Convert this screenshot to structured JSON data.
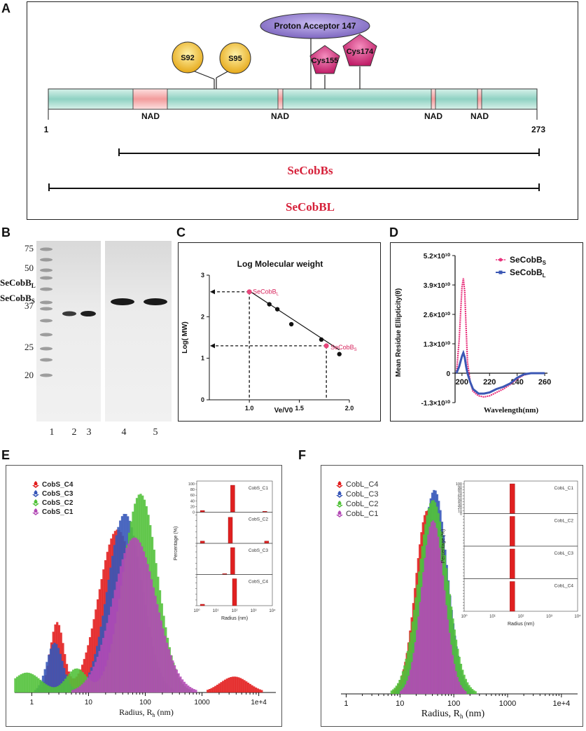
{
  "panels": {
    "a": "A",
    "b": "B",
    "c": "C",
    "d": "D",
    "e": "E",
    "f": "F"
  },
  "panel_a": {
    "residue_start": "1",
    "residue_end": "273",
    "nad_label": "NAD",
    "sites": [
      "S92",
      "S95"
    ],
    "proton_acceptor": "Proton Acceptor 147",
    "cysteines": [
      "Cys155",
      "Cys174"
    ],
    "short_construct": "SeCobBs",
    "long_construct": "SeCobBL",
    "colors": {
      "bar": "#9fd9cc",
      "nad": "#f2a4a4",
      "serine": "#f3c832",
      "cys": "#d2387a",
      "proton": "#8c7cc8",
      "construct_text": "#d6213a"
    }
  },
  "panel_b": {
    "ladder": [
      "75",
      "50",
      "37",
      "25",
      "20"
    ],
    "band_label_long": "SeCobB",
    "band_label_long_sub": "L",
    "band_label_short": "SeCobB",
    "band_label_short_sub": "S",
    "lanes": [
      "1",
      "2",
      "3",
      "4",
      "5"
    ]
  },
  "panel_c": {
    "title": "Log Molecular weight",
    "ylabel": "Log( MW)",
    "xlabel": "Ve/V0",
    "xticks": [
      "1.0",
      "1.5",
      "2.0"
    ],
    "yticks": [
      "0",
      "1",
      "2",
      "3"
    ],
    "label_long": "SeCobB",
    "label_long_sub": "L",
    "label_short": "SeCobB",
    "label_short_sub": "S"
  },
  "panel_d": {
    "ylabel": "Mean Residue Ellipticity(θ)",
    "xlabel": "Wavelength(nm)",
    "yticks": [
      "5.2×10¹⁰",
      "3.9×10¹⁰",
      "2.6×10¹⁰",
      "1.3×10¹⁰",
      "0",
      "-1.3×10¹⁰"
    ],
    "xticks": [
      "200",
      "220",
      "240",
      "260"
    ],
    "legend": [
      {
        "name": "SeCobB",
        "sub": "S",
        "color": "#e8327c"
      },
      {
        "name": "SeCobB",
        "sub": "L",
        "color": "#3b57b4"
      }
    ]
  },
  "panel_e": {
    "legend": [
      {
        "name": "CobS_C4",
        "color": "#e21d1d"
      },
      {
        "name": "CobS_C3",
        "color": "#3656b8"
      },
      {
        "name": "CobS_C2",
        "color": "#52c23a"
      },
      {
        "name": "CobS_C1",
        "color": "#b34ab5"
      }
    ],
    "xticks": [
      "1",
      "10",
      "100",
      "1000",
      "1e+4"
    ],
    "xlabel": "Radius, R",
    "xlabel_sub": "h",
    "xlabel_unit": " (nm)",
    "inset_ylabel": "Percentage (%)",
    "inset_xlabel": "Radius (nm)",
    "inset_rows": [
      "CobS_C1",
      "CobS_C2",
      "CobS_C3",
      "CobS_C4"
    ],
    "inset_yticks": [
      "0",
      "20",
      "40",
      "60",
      "80",
      "100"
    ],
    "inset_xticks": [
      "10⁰",
      "10¹",
      "10²",
      "10³",
      "10⁴"
    ]
  },
  "panel_f": {
    "legend": [
      {
        "name": "CobL_C4",
        "color": "#e21d1d"
      },
      {
        "name": "CobL_C3",
        "color": "#3656b8"
      },
      {
        "name": "CobL_C2",
        "color": "#52c23a"
      },
      {
        "name": "CobL_C1",
        "color": "#b34ab5"
      }
    ],
    "xticks": [
      "1",
      "10",
      "100",
      "1000",
      "1e+4"
    ],
    "xlabel": "Radius, R",
    "xlabel_sub": "h",
    "xlabel_unit": " (nm)",
    "inset_ylabel": "Percentage (%)",
    "inset_xlabel": "Radius (nm)",
    "inset_rows": [
      "CobL_C1",
      "CobL_C2",
      "CobL_C3",
      "CobL_C4"
    ],
    "inset_yticks": [
      "0",
      "10",
      "20",
      "30",
      "40",
      "50",
      "60",
      "70",
      "80",
      "90",
      "100"
    ],
    "inset_xticks": [
      "10⁰",
      "10¹",
      "10²",
      "10³",
      "10⁴"
    ]
  },
  "chart_data": [
    {
      "id": "C",
      "type": "scatter",
      "title": "Log Molecular weight",
      "xlabel": "Ve/V0",
      "ylabel": "Log( MW)",
      "xlim": [
        0.6,
        2.0
      ],
      "ylim": [
        0,
        3
      ],
      "standards": {
        "x": [
          1.2,
          1.28,
          1.42,
          1.72,
          1.9
        ],
        "y": [
          2.3,
          2.18,
          1.82,
          1.45,
          1.1
        ]
      },
      "samples": [
        {
          "name": "SeCobB_L",
          "x": 1.0,
          "y": 2.6
        },
        {
          "name": "SeCobB_S",
          "x": 1.77,
          "y": 1.3
        }
      ],
      "fit_line": {
        "x": [
          1.0,
          1.9
        ],
        "y": [
          2.62,
          1.2
        ]
      }
    },
    {
      "id": "D",
      "type": "line",
      "xlabel": "Wavelength(nm)",
      "ylabel": "Mean Residue Ellipticity(θ)",
      "xlim": [
        195,
        262
      ],
      "ylim": [
        -13000000000,
        52000000000
      ],
      "series": [
        {
          "name": "SeCobB_S",
          "x": [
            196,
            198,
            200,
            201,
            202,
            203,
            204,
            206,
            208,
            212,
            216,
            220,
            225,
            230,
            235,
            240,
            245,
            250,
            255,
            260
          ],
          "y": [
            0,
            15000000000,
            38000000000,
            42000000000,
            36000000000,
            20000000000,
            5000000000,
            -4000000000,
            -8000000000,
            -10000000000,
            -10500000000,
            -10000000000,
            -8500000000,
            -7000000000,
            -5000000000,
            -2500000000,
            -800000000,
            0,
            0,
            0
          ]
        },
        {
          "name": "SeCobB_L",
          "x": [
            196,
            198,
            200,
            201,
            202,
            203,
            204,
            206,
            208,
            212,
            216,
            220,
            225,
            230,
            235,
            240,
            245,
            250,
            255,
            260
          ],
          "y": [
            0,
            3000000000,
            7500000000,
            9000000000,
            7000000000,
            3000000000,
            0,
            -4000000000,
            -7000000000,
            -9000000000,
            -9000000000,
            -8500000000,
            -7000000000,
            -6000000000,
            -4500000000,
            -2000000000,
            -500000000,
            0,
            0,
            0
          ]
        }
      ]
    },
    {
      "id": "E",
      "type": "bar",
      "xscale": "log",
      "xlabel": "Radius, R_h (nm)",
      "xlim": [
        0.5,
        20000
      ],
      "ylim": [
        0,
        105
      ],
      "series": [
        {
          "name": "CobS_C4",
          "peaks": [
            {
              "center": 35,
              "sigma": 0.33,
              "height": 82
            },
            {
              "center": 3,
              "sigma": 0.12,
              "height": 35
            },
            {
              "center": 4000,
              "sigma": 0.25,
              "height": 8
            }
          ]
        },
        {
          "name": "CobS_C3",
          "peaks": [
            {
              "center": 45,
              "sigma": 0.3,
              "height": 90
            },
            {
              "center": 2.6,
              "sigma": 0.14,
              "height": 25
            }
          ]
        },
        {
          "name": "CobS_C2",
          "peaks": [
            {
              "center": 80,
              "sigma": 0.3,
              "height": 100
            },
            {
              "center": 0.8,
              "sigma": 0.25,
              "height": 10
            },
            {
              "center": 6,
              "sigma": 0.18,
              "height": 12
            }
          ]
        },
        {
          "name": "CobS_C1",
          "peaks": [
            {
              "center": 60,
              "sigma": 0.38,
              "height": 78
            }
          ]
        }
      ],
      "inset": {
        "ylabel": "Percentage (%)",
        "xlabel": "Radius (nm)",
        "ylim": [
          0,
          100
        ],
        "rows": [
          {
            "name": "CobS_C1",
            "bars": [
              {
                "x": 2,
                "value": 6
              },
              {
                "x": 80,
                "value": 95
              },
              {
                "x": 4000,
                "value": 3
              }
            ]
          },
          {
            "name": "CobS_C2",
            "bars": [
              {
                "x": 2,
                "value": 8
              },
              {
                "x": 60,
                "value": 92
              },
              {
                "x": 5000,
                "value": 8
              }
            ]
          },
          {
            "name": "CobS_C3",
            "bars": [
              {
                "x": 30,
                "value": 3
              },
              {
                "x": 80,
                "value": 95
              }
            ]
          },
          {
            "name": "CobS_C4",
            "bars": [
              {
                "x": 2,
                "value": 5
              },
              {
                "x": 100,
                "value": 95
              }
            ]
          }
        ]
      }
    },
    {
      "id": "F",
      "type": "bar",
      "xscale": "log",
      "xlabel": "Radius, R_h (nm)",
      "xlim": [
        0.8,
        20000
      ],
      "ylim": [
        0,
        105
      ],
      "series": [
        {
          "name": "CobL_C4",
          "peaks": [
            {
              "center": 35,
              "sigma": 0.22,
              "height": 90
            }
          ]
        },
        {
          "name": "CobL_C3",
          "peaks": [
            {
              "center": 45,
              "sigma": 0.24,
              "height": 100
            }
          ]
        },
        {
          "name": "CobL_C2",
          "peaks": [
            {
              "center": 40,
              "sigma": 0.27,
              "height": 95
            }
          ]
        },
        {
          "name": "CobL_C1",
          "peaks": [
            {
              "center": 38,
              "sigma": 0.21,
              "height": 85
            }
          ]
        }
      ],
      "inset": {
        "ylabel": "Percentage (%)",
        "xlabel": "Radius (nm)",
        "ylim": [
          0,
          100
        ],
        "rows": [
          {
            "name": "CobL_C1",
            "bars": [
              {
                "x": 50,
                "value": 100
              }
            ]
          },
          {
            "name": "CobL_C2",
            "bars": [
              {
                "x": 50,
                "value": 100
              }
            ]
          },
          {
            "name": "CobL_C3",
            "bars": [
              {
                "x": 50,
                "value": 100
              }
            ]
          },
          {
            "name": "CobL_C4",
            "bars": [
              {
                "x": 50,
                "value": 100
              }
            ]
          }
        ]
      }
    }
  ]
}
